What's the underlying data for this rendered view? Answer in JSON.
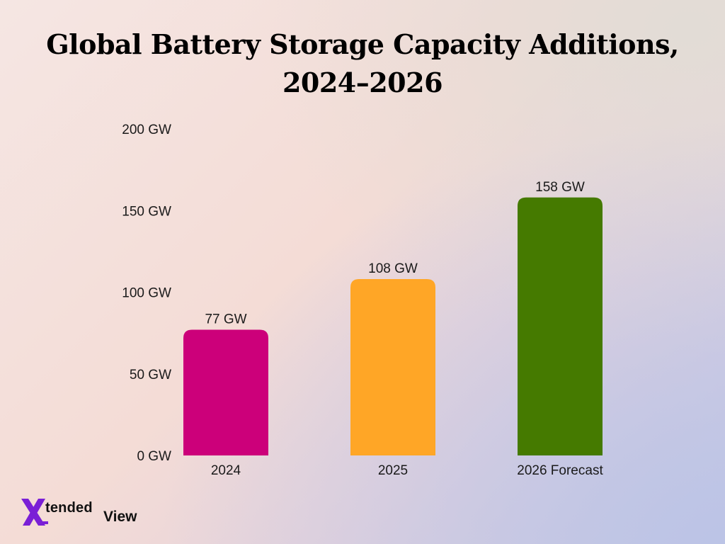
{
  "title_line1": "Global Battery Storage Capacity Additions,",
  "title_line2": "2024–2026",
  "chart_data": {
    "type": "bar",
    "categories": [
      "2024",
      "2025",
      "2026 Forecast"
    ],
    "values": [
      77,
      108,
      158
    ],
    "value_labels": [
      "77 GW",
      "108 GW",
      "158 GW"
    ],
    "colors": [
      "#cc007a",
      "#ffa626",
      "#457a00"
    ],
    "ylim": [
      0,
      200
    ],
    "yticks": [
      0,
      50,
      100,
      150,
      200
    ],
    "ytick_labels": [
      "0 GW",
      "50 GW",
      "100 GW",
      "150 GW",
      "200 GW"
    ],
    "unit": "GW",
    "grid": false,
    "legend": "none"
  },
  "logo": {
    "mark": "X",
    "word1": "tended",
    "word2": "View",
    "colors": [
      "#7a1fd6",
      "#e6b800"
    ]
  }
}
